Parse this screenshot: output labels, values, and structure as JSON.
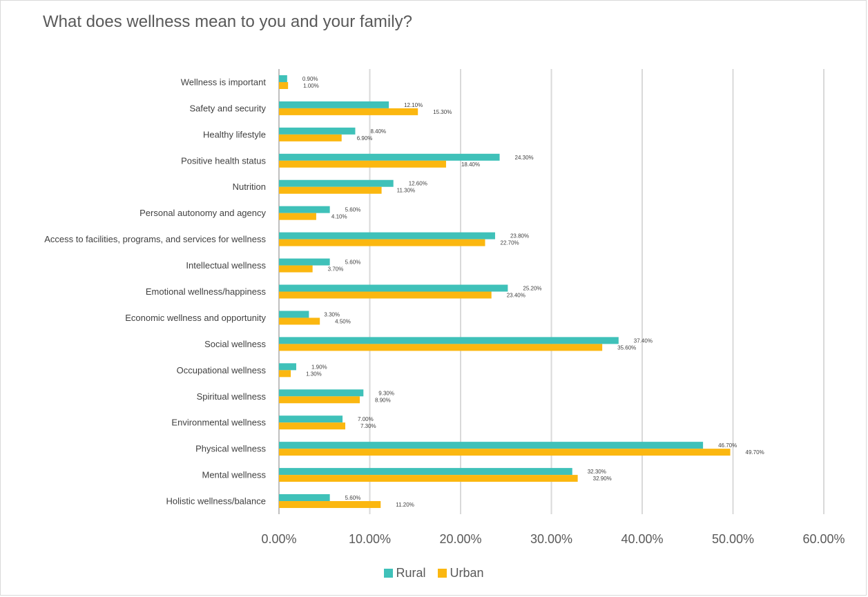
{
  "chart_data": {
    "type": "bar",
    "orientation": "horizontal",
    "title": "What does wellness mean to you and your family?",
    "categories": [
      "Wellness is important",
      "Safety and security",
      "Healthy lifestyle",
      "Positive health status",
      "Nutrition",
      "Personal autonomy and agency",
      "Access to facilities, programs, and services for wellness",
      "Intellectual wellness",
      "Emotional wellness/happiness",
      "Economic wellness and opportunity",
      "Social wellness",
      "Occupational wellness",
      "Spiritual wellness",
      "Environmental wellness",
      "Physical wellness",
      "Mental wellness",
      "Holistic wellness/balance"
    ],
    "series": [
      {
        "name": "Rural",
        "color": "#3fc1b9",
        "values": [
          0.9,
          12.1,
          8.4,
          24.3,
          12.6,
          5.6,
          23.8,
          5.6,
          25.2,
          3.3,
          37.4,
          1.9,
          9.3,
          7.0,
          46.7,
          32.3,
          5.6
        ],
        "labels": [
          "0.90%",
          "12.10%",
          "8.40%",
          "24.30%",
          "12.60%",
          "5.60%",
          "23.80%",
          "5.60%",
          "25.20%",
          "3.30%",
          "37.40%",
          "1.90%",
          "9.30%",
          "7.00%",
          "46.70%",
          "32.30%",
          "5.60%"
        ]
      },
      {
        "name": "Urban",
        "color": "#fbb710",
        "values": [
          1.0,
          15.3,
          6.9,
          18.4,
          11.3,
          4.1,
          22.7,
          3.7,
          23.4,
          4.5,
          35.6,
          1.3,
          8.9,
          7.3,
          49.7,
          32.9,
          11.2
        ],
        "labels": [
          "1.00%",
          "15.30%",
          "6.90%",
          "18.40%",
          "11.30%",
          "4.10%",
          "22.70%",
          "3.70%",
          "23.40%",
          "4.50%",
          "35.60%",
          "1.30%",
          "8.90%",
          "7.30%",
          "49.70%",
          "32.90%",
          "11.20%"
        ]
      }
    ],
    "xlim": [
      0,
      60
    ],
    "xticks": [
      0,
      10,
      20,
      30,
      40,
      50,
      60
    ],
    "xtick_labels": [
      "0.00%",
      "10.00%",
      "20.00%",
      "30.00%",
      "40.00%",
      "50.00%",
      "60.00%"
    ],
    "grid": true,
    "grid_color": "#d9d9d9",
    "legend_position": "bottom",
    "xlabel": "",
    "ylabel": ""
  }
}
